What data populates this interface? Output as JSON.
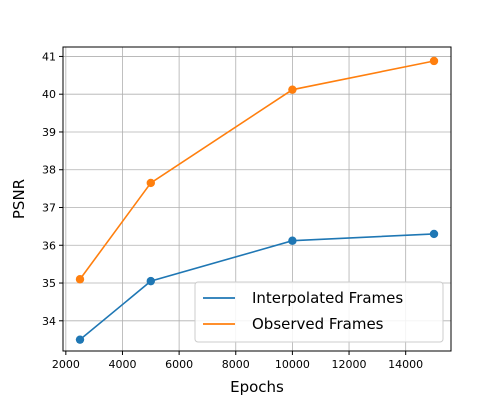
{
  "chart_data": {
    "type": "line",
    "title": "",
    "xlabel": "Epochs",
    "ylabel": "PSNR",
    "xlim": [
      1900,
      15600
    ],
    "ylim": [
      33.2,
      41.25
    ],
    "xticks": [
      2000,
      4000,
      6000,
      8000,
      10000,
      12000,
      14000
    ],
    "yticks": [
      34,
      35,
      36,
      37,
      38,
      39,
      40,
      41
    ],
    "grid": true,
    "legend_position": "lower-right",
    "series": [
      {
        "name": "Interpolated Frames",
        "color": "#1f77b4",
        "x": [
          2500,
          5000,
          10000,
          15000
        ],
        "y": [
          33.5,
          35.05,
          36.12,
          36.3
        ]
      },
      {
        "name": "Observed Frames",
        "color": "#ff7f0e",
        "x": [
          2500,
          5000,
          10000,
          15000
        ],
        "y": [
          35.1,
          37.65,
          40.12,
          40.88
        ]
      }
    ]
  }
}
